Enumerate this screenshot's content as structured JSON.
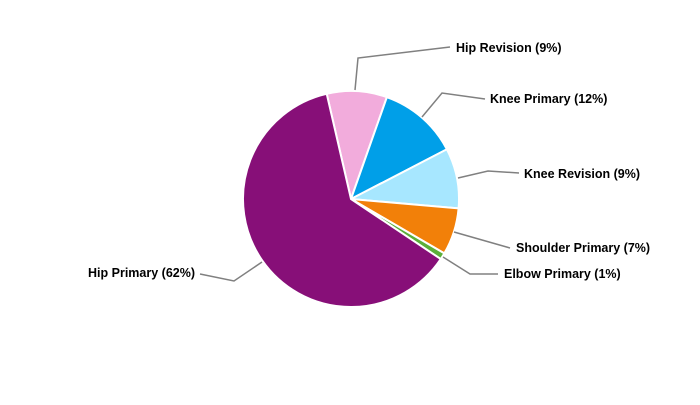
{
  "chart_data": {
    "type": "pie",
    "title": "",
    "slices": [
      {
        "label": "Hip Revision (9%)",
        "value": 9,
        "color": "#F2ACDC"
      },
      {
        "label": "Knee Primary (12%)",
        "value": 12,
        "color": "#009FE8"
      },
      {
        "label": "Knee Revision (9%)",
        "value": 9,
        "color": "#A7E7FF"
      },
      {
        "label": "Shoulder Primary (7%)",
        "value": 7,
        "color": "#F28009"
      },
      {
        "label": "Elbow Primary (1%)",
        "value": 1,
        "color": "#5BAF3A"
      },
      {
        "label": "Hip Primary (62%)",
        "value": 62,
        "color": "#870F78"
      }
    ],
    "legend": "none",
    "data_labels": "outside with leader lines",
    "leader_line_color": "#808080"
  }
}
